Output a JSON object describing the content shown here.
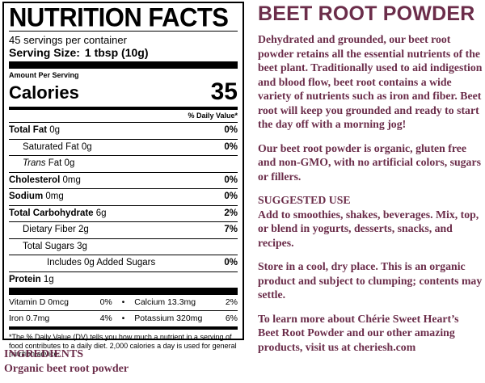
{
  "nutrition": {
    "title": "NUTRITION FACTS",
    "servings": "45 servings per container",
    "serving_size_label": "Serving Size:",
    "serving_size_value": "1 tbsp (10g)",
    "amount_per": "Amount Per Serving",
    "calories_label": "Calories",
    "calories_value": "35",
    "dv_header": "% Daily Value*",
    "rows": {
      "total_fat": {
        "label": "Total Fat",
        "amount": "0g",
        "pct": "0%"
      },
      "sat_fat": {
        "label": "Saturated Fat",
        "amount": "0g",
        "pct": "0%"
      },
      "trans_fat": {
        "label": "Trans",
        "suffix": "Fat 0g"
      },
      "cholesterol": {
        "label": "Cholesterol",
        "amount": "0mg",
        "pct": "0%"
      },
      "sodium": {
        "label": "Sodium",
        "amount": "0mg",
        "pct": "0%"
      },
      "total_carb": {
        "label": "Total Carbohydrate",
        "amount": "6g",
        "pct": "2%"
      },
      "fiber": {
        "label": "Dietary Fiber",
        "amount": "2g",
        "pct": "7%"
      },
      "sugars": {
        "label": "Total Sugars",
        "amount": "3g"
      },
      "added_sugars": {
        "label": "Includes 0g Added Sugars",
        "pct": "0%"
      },
      "protein": {
        "label": "Protein",
        "amount": "1g"
      }
    },
    "vitamins": [
      {
        "name": "Vitamin D 0mcg",
        "pct": "0%"
      },
      {
        "name": "Calcium 13.3mg",
        "pct": "2%"
      },
      {
        "name": "Iron 0.7mg",
        "pct": "4%"
      },
      {
        "name": "Potassium 320mg",
        "pct": "6%"
      }
    ],
    "footnote": "*The % Daily Value (DV) tells you how much a nutrient in a serving of food contributes to a daily diet. 2,000 calories a day is used for general nutrition advice."
  },
  "ingredients": {
    "heading": "INGREDIENTS",
    "text": "Organic beet root powder"
  },
  "product": {
    "title": "BEET ROOT POWDER",
    "paragraphs": [
      "Dehydrated and grounded, our beet root powder retains all the essential nutrients of the beet plant. Traditionally used to aid indigestion and blood flow, beet root contains a wide variety of nutrients such as iron and fiber. Beet root will keep you grounded and ready to start the day off with a morning jog!",
      "Our beet root powder is organic, gluten free and non-GMO, with no artificial colors, sugars or fillers.",
      "SUGGESTED USE",
      "Add to smoothies, shakes, beverages. Mix, top, or blend in yogurts, desserts, snacks, and recipes.",
      "Store in a cool, dry place. This is an organic product and subject to clumping; contents may settle.",
      "To learn more about Chérie Sweet Heart’s Beet Root Powder and our other amazing products, visit us at cheriesh.com"
    ]
  },
  "colors": {
    "accent": "#6b2d4a",
    "text": "#000000",
    "background": "#ffffff"
  }
}
